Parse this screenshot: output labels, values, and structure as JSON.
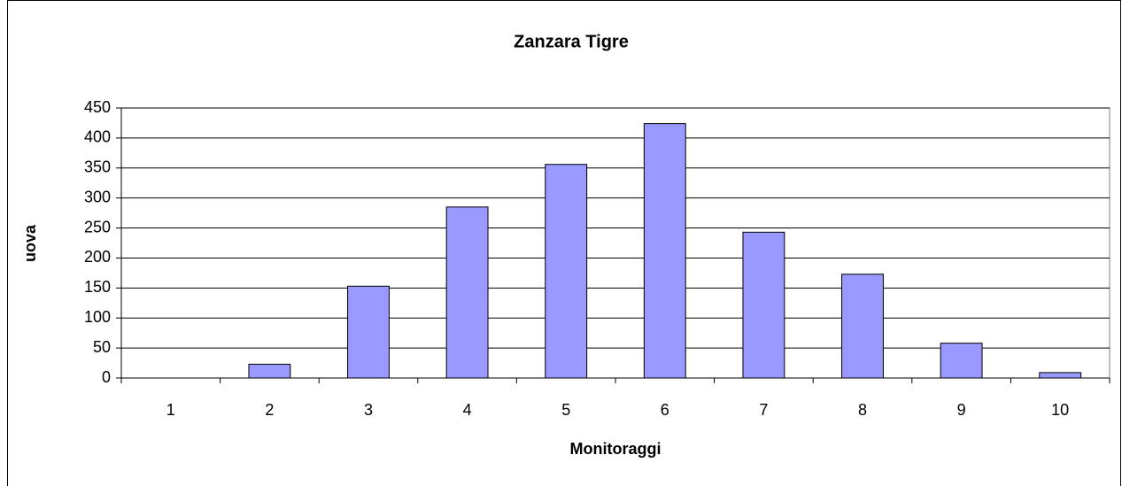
{
  "chart_data": {
    "type": "bar",
    "title": "Zanzara Tigre",
    "x_label": "Monitoraggi",
    "y_label": "uova",
    "categories": [
      "1",
      "2",
      "3",
      "4",
      "5",
      "6",
      "7",
      "8",
      "9",
      "10"
    ],
    "values": [
      0,
      23,
      153,
      285,
      356,
      424,
      243,
      173,
      58,
      9
    ],
    "color": "#9999ff",
    "ylim": [
      0,
      450
    ],
    "yticks": [
      0,
      50,
      100,
      150,
      200,
      250,
      300,
      350,
      400,
      450
    ],
    "grid": true
  }
}
